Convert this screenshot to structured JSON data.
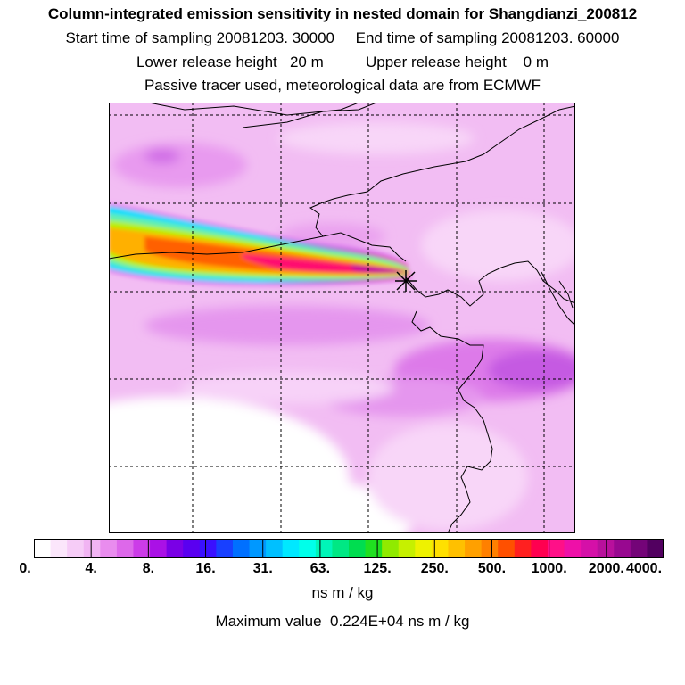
{
  "header": {
    "title": "Column-integrated emission sensitivity in nested domain for Shangdianzi_200812",
    "line1": "Start time of sampling 20081203. 30000     End time of sampling 20081203. 60000",
    "line2": "Lower release height   20 m          Upper release height    0 m",
    "line3": "Passive tracer used, meteorological data are from ECMWF"
  },
  "map": {
    "release_site": "Shangdianzi",
    "gridlines": "dashed",
    "plume_direction": "west"
  },
  "colorbar": {
    "tick_labels": [
      "0.",
      "4.",
      "8.",
      "16.",
      "31.",
      "63.",
      "125.",
      "250.",
      "500.",
      "1000.",
      "2000.",
      "4000."
    ],
    "colors": [
      "#ffffff",
      "#fbe6fb",
      "#f6ccf7",
      "#f1b4f3",
      "#e98cee",
      "#dd68ea",
      "#cc3ce8",
      "#aa11e6",
      "#7a00e6",
      "#5a00f0",
      "#3a10ff",
      "#1840ff",
      "#0070ff",
      "#0098ff",
      "#00c0ff",
      "#00e8ff",
      "#00ffea",
      "#00f5b8",
      "#00e884",
      "#00dd50",
      "#20e020",
      "#90ea00",
      "#c6f000",
      "#eef200",
      "#ffe000",
      "#ffc000",
      "#ffa000",
      "#ff8000",
      "#ff5000",
      "#ff2020",
      "#ff0050",
      "#ff1088",
      "#ee10a8",
      "#d510a8",
      "#b8109c",
      "#980890",
      "#740478",
      "#520060"
    ],
    "units": "ns m / kg",
    "maximum_text": "Maximum value  0.224E+04 ns m / kg"
  }
}
